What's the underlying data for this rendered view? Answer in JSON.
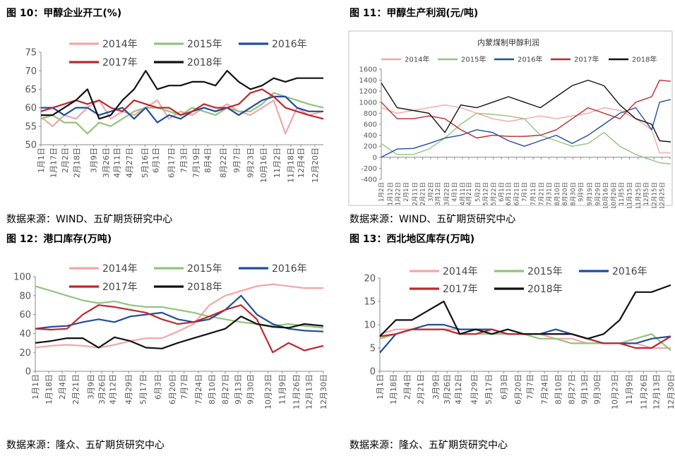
{
  "chart_data": [
    {
      "type": "line",
      "title": "图 10：甲醇企业开工(%)",
      "source": "数据来源：WIND、五矿期货研究中心",
      "ylim": [
        50,
        75
      ],
      "yticks": [
        50,
        55,
        60,
        65,
        70,
        75
      ],
      "xlim": [
        0,
        364
      ],
      "x_tick_positions": [
        0,
        16,
        31,
        46,
        68,
        84,
        98,
        114,
        134,
        148,
        168,
        184,
        200,
        215,
        235,
        252,
        270,
        287,
        304,
        322,
        335,
        353
      ],
      "x_ticks": [
        "1月1日",
        "1月17日",
        "2月2日",
        "2月18日",
        "3月9日",
        "3月26日",
        "4月11日",
        "4月27日",
        "5月16日",
        "6月1日",
        "6月17日",
        "7月3日",
        "7月19日",
        "8月4日",
        "8月22日",
        "9月7日",
        "9月23日",
        "10月16日",
        "11月2日",
        "11月18日",
        "12月4日",
        "12月20日"
      ],
      "x": [
        0,
        15,
        30,
        45,
        60,
        75,
        90,
        105,
        120,
        135,
        150,
        165,
        180,
        195,
        210,
        225,
        240,
        255,
        270,
        285,
        300,
        315,
        330,
        345,
        364
      ],
      "series": [
        {
          "name": "2014年",
          "color": "#f4a6a6",
          "values": [
            57.5,
            55,
            58,
            57,
            60,
            62,
            57,
            59,
            58,
            60,
            62,
            57,
            59,
            58,
            60,
            59,
            61,
            59,
            58,
            60,
            62,
            53,
            60,
            58,
            59
          ]
        },
        {
          "name": "2015年",
          "color": "#92c47c",
          "values": [
            57,
            58,
            56,
            56,
            53,
            56,
            55,
            57,
            59,
            60,
            60,
            59,
            58,
            60,
            59,
            58,
            60,
            59,
            59,
            61,
            64,
            63,
            62,
            61,
            60
          ]
        },
        {
          "name": "2016年",
          "color": "#1f4e9b",
          "values": [
            60,
            60,
            58,
            60,
            60,
            58,
            59,
            60,
            57,
            60,
            56,
            58,
            57,
            59,
            60,
            59,
            60,
            58,
            60,
            62,
            63,
            63,
            60,
            59,
            59
          ]
        },
        {
          "name": "2017年",
          "color": "#c0272d",
          "values": [
            59,
            60,
            61,
            62,
            61,
            62,
            60,
            59,
            62,
            61,
            60,
            60,
            58,
            59,
            61,
            60,
            60,
            61,
            64,
            65,
            63,
            60,
            59,
            58,
            57
          ]
        },
        {
          "name": "2018年",
          "color": "#111111",
          "values": [
            58,
            58,
            60,
            62,
            65,
            57,
            58,
            62,
            65,
            70,
            65,
            66,
            66,
            67,
            67,
            66,
            70,
            67,
            65,
            66,
            68,
            67,
            68,
            68,
            68
          ]
        }
      ]
    },
    {
      "type": "line",
      "title": "图 11：甲醇生产利润(元/吨)",
      "subtitle": "内蒙煤制甲醇利润",
      "source": "数据来源：WIND、五矿期货研究中心",
      "ylim": [
        -400,
        1600
      ],
      "yticks": [
        -400,
        -200,
        0,
        200,
        400,
        600,
        800,
        1000,
        1200,
        1400,
        1600
      ],
      "xlim": [
        0,
        364
      ],
      "x_tick_positions": [
        0,
        11,
        21,
        31,
        42,
        52,
        62,
        71,
        82,
        92,
        102,
        110,
        121,
        131,
        141,
        151,
        160,
        170,
        180,
        191,
        201,
        211,
        221,
        231,
        241,
        251,
        262,
        272,
        282,
        292,
        302,
        312,
        323,
        333,
        343,
        353,
        363
      ],
      "x_ticks": [
        "1月2日",
        "1月12日",
        "1月22日",
        "2月1日",
        "2月11日",
        "2月21日",
        "3月2日",
        "3月12日",
        "3月22日",
        "4月1日",
        "4月11日",
        "4月21日",
        "5月2日",
        "5月12日",
        "5月22日",
        "6月1日",
        "6月11日",
        "6月21日",
        "7月1日",
        "7月11日",
        "7月21日",
        "7月31日",
        "8月10日",
        "8月20日",
        "8月30日",
        "9月9日",
        "9月19日",
        "9月29日",
        "10月16日",
        "10月26日",
        "11月5日",
        "11月15日",
        "11月25日",
        "12月5日",
        "12月15日",
        "12月25日",
        ""
      ],
      "x": [
        0,
        20,
        40,
        60,
        80,
        100,
        120,
        140,
        160,
        180,
        200,
        220,
        240,
        260,
        280,
        300,
        320,
        340,
        350,
        364
      ],
      "series": [
        {
          "name": "2014年",
          "color": "#f4a6a6",
          "values": [
            900,
            800,
            850,
            900,
            950,
            900,
            800,
            700,
            650,
            700,
            750,
            700,
            750,
            800,
            900,
            850,
            700,
            500,
            80,
            80
          ]
        },
        {
          "name": "2015年",
          "color": "#92c47c",
          "values": [
            250,
            50,
            50,
            150,
            350,
            600,
            800,
            780,
            750,
            700,
            400,
            300,
            200,
            250,
            450,
            200,
            50,
            -50,
            -100,
            -120
          ]
        },
        {
          "name": "2016年",
          "color": "#1f4e9b",
          "values": [
            0,
            150,
            160,
            250,
            350,
            400,
            500,
            450,
            300,
            200,
            300,
            400,
            250,
            400,
            600,
            800,
            900,
            500,
            1000,
            1050
          ]
        },
        {
          "name": "2017年",
          "color": "#c0272d",
          "values": [
            1000,
            700,
            700,
            750,
            700,
            500,
            350,
            400,
            380,
            380,
            400,
            500,
            700,
            900,
            800,
            700,
            1000,
            1100,
            1400,
            1380
          ]
        },
        {
          "name": "2018年",
          "color": "#111111",
          "values": [
            1350,
            900,
            850,
            800,
            450,
            950,
            900,
            1000,
            1100,
            1000,
            900,
            1100,
            1300,
            1400,
            1300,
            950,
            700,
            600,
            300,
            280
          ]
        }
      ]
    },
    {
      "type": "line",
      "title": "图 12：港口库存(万吨)",
      "source": "数据来源：隆众、五矿期货研究中心",
      "ylim": [
        0,
        100
      ],
      "yticks": [
        0,
        20,
        40,
        60,
        80,
        100
      ],
      "xlim": [
        0,
        364
      ],
      "x_tick_positions": [
        0,
        17,
        34,
        51,
        70,
        84,
        98,
        118,
        136,
        155,
        173,
        188,
        206,
        223,
        240,
        256,
        272,
        294,
        312,
        330,
        346,
        364
      ],
      "x_ticks": [
        "1月1日",
        "1月18日",
        "2月4日",
        "2月21日",
        "3月9日",
        "3月26日",
        "4月12日",
        "4月29日",
        "5月17日",
        "6月3日",
        "6月20日",
        "7月7日",
        "7月24日",
        "8月10日",
        "8月27日",
        "9月13日",
        "9月30日",
        "10月23日",
        "11月9日",
        "11月26日",
        "12月13日",
        "12月30日"
      ],
      "x": [
        0,
        20,
        40,
        60,
        80,
        100,
        120,
        140,
        160,
        180,
        200,
        220,
        240,
        260,
        280,
        300,
        320,
        340,
        364
      ],
      "series": [
        {
          "name": "2014年",
          "color": "#f4a6a6",
          "values": [
            25,
            27,
            28,
            27,
            25,
            28,
            32,
            35,
            35,
            42,
            50,
            70,
            80,
            85,
            90,
            92,
            90,
            88,
            88
          ]
        },
        {
          "name": "2015年",
          "color": "#92c47c",
          "values": [
            90,
            85,
            80,
            75,
            72,
            74,
            70,
            68,
            68,
            65,
            62,
            58,
            55,
            52,
            50,
            48,
            50,
            48,
            46
          ]
        },
        {
          "name": "2016年",
          "color": "#1f4e9b",
          "values": [
            45,
            47,
            48,
            52,
            55,
            52,
            58,
            60,
            62,
            55,
            52,
            55,
            65,
            80,
            60,
            50,
            45,
            43,
            42
          ]
        },
        {
          "name": "2017年",
          "color": "#c0272d",
          "values": [
            45,
            44,
            45,
            60,
            70,
            68,
            65,
            62,
            55,
            50,
            52,
            58,
            65,
            70,
            55,
            20,
            30,
            22,
            27
          ]
        },
        {
          "name": "2018年",
          "color": "#111111",
          "values": [
            30,
            32,
            35,
            35,
            25,
            36,
            32,
            25,
            24,
            30,
            35,
            40,
            45,
            58,
            50,
            47,
            46,
            50,
            48
          ]
        }
      ]
    },
    {
      "type": "line",
      "title": "图 13：西北地区库存(万吨)",
      "source": "数据来源：隆众、五矿期货研究中心",
      "ylim": [
        0,
        20
      ],
      "yticks": [
        0,
        5,
        10,
        15,
        20
      ],
      "xlim": [
        0,
        364
      ],
      "x_tick_positions": [
        0,
        17,
        34,
        51,
        70,
        84,
        98,
        118,
        136,
        155,
        173,
        188,
        206,
        223,
        240,
        256,
        272,
        294,
        312,
        330,
        346,
        364
      ],
      "x_ticks": [
        "1月1日",
        "1月18日",
        "2月4日",
        "2月21日",
        "3月9日",
        "3月26日",
        "4月12日",
        "4月29日",
        "5月17日",
        "6月3日",
        "6月20日",
        "7月7日",
        "7月24日",
        "8月10日",
        "8月27日",
        "9月13日",
        "9月30日",
        "10月23日",
        "11月9日",
        "11月26日",
        "12月13日",
        "12月30日"
      ],
      "x": [
        0,
        20,
        40,
        60,
        80,
        100,
        120,
        140,
        160,
        180,
        200,
        220,
        240,
        260,
        280,
        300,
        320,
        340,
        364
      ],
      "series": [
        {
          "name": "2014年",
          "color": "#f4a6a6",
          "values": [
            8,
            9,
            9,
            9,
            9,
            9,
            9,
            9,
            8,
            8,
            8,
            7,
            7,
            6,
            6,
            6,
            6,
            5,
            5
          ]
        },
        {
          "name": "2015年",
          "color": "#92c47c",
          "values": [
            7,
            8,
            9,
            9,
            9,
            8,
            8,
            8,
            8,
            8,
            7,
            7,
            6,
            6,
            6,
            6,
            7,
            8,
            4.5
          ]
        },
        {
          "name": "2016年",
          "color": "#1f4e9b",
          "values": [
            4,
            8,
            9,
            10,
            10,
            9,
            9,
            9,
            8,
            8,
            8,
            9,
            8,
            7,
            6,
            6,
            6,
            7,
            7.5
          ]
        },
        {
          "name": "2017年",
          "color": "#c0272d",
          "values": [
            7.5,
            8,
            9,
            9,
            9,
            8,
            8,
            9,
            8,
            8,
            8,
            8,
            8,
            7,
            6,
            6,
            5,
            5,
            7.5
          ]
        },
        {
          "name": "2018年",
          "color": "#111111",
          "values": [
            7.5,
            11,
            11,
            13,
            15,
            8,
            9,
            8,
            9,
            8,
            8,
            8,
            8,
            7,
            8,
            11,
            17,
            17,
            18.5
          ]
        }
      ]
    }
  ]
}
